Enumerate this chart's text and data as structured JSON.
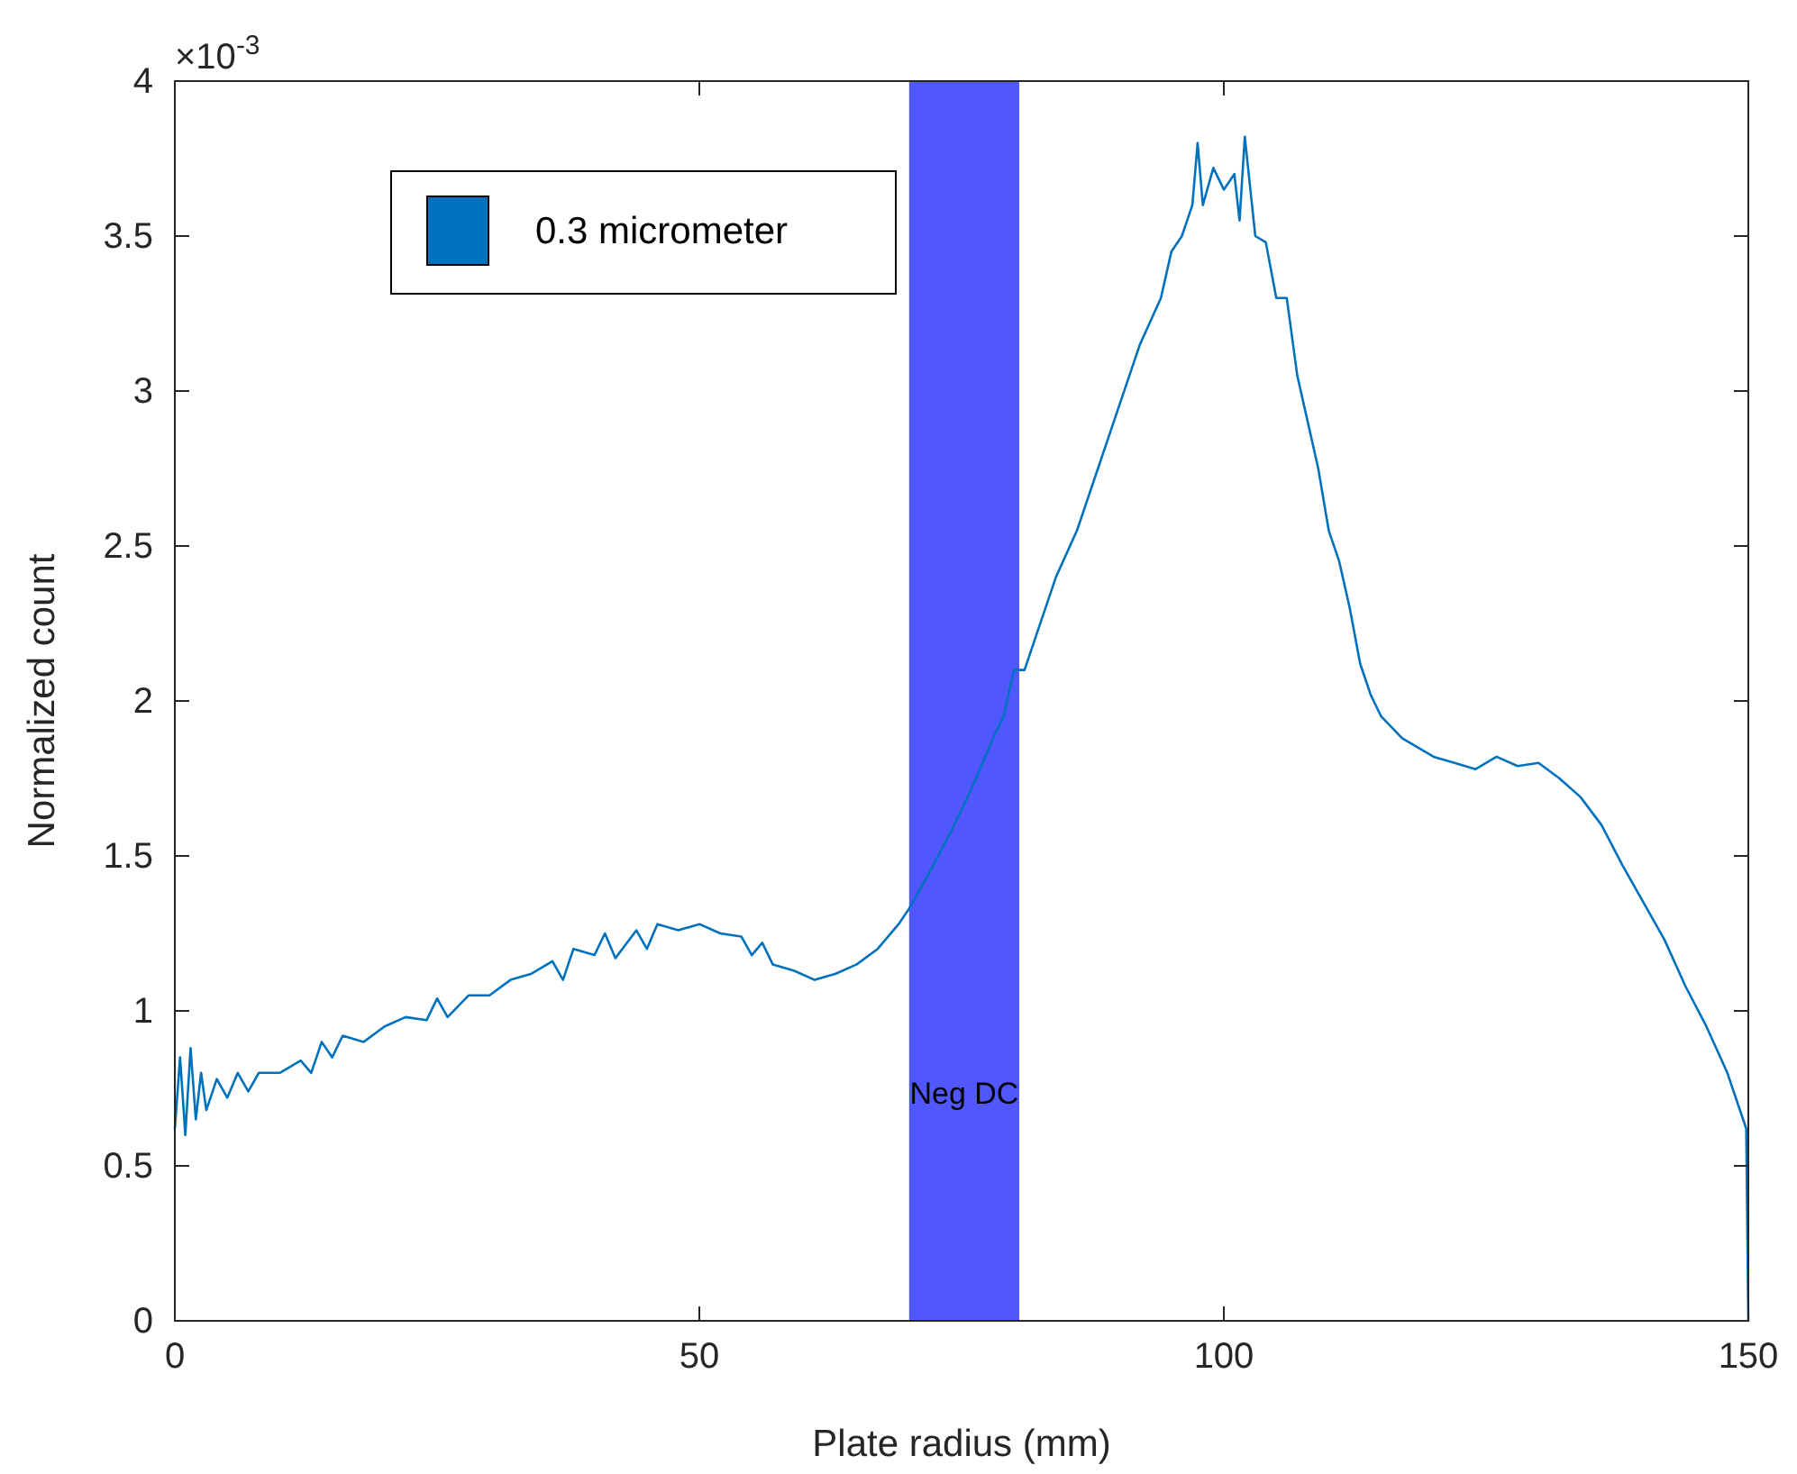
{
  "chart_data": {
    "type": "line",
    "xlabel": "Plate radius (mm)",
    "ylabel": "Normalized count",
    "annotations": [
      "×10$^{-3}$"
    ],
    "xlim": [
      0,
      150
    ],
    "xticks": [
      0,
      50,
      100,
      150
    ],
    "ylim": [
      0,
      4
    ],
    "yticks": [
      0,
      0.5,
      1,
      1.5,
      2,
      2.5,
      3,
      3.5,
      4
    ],
    "legend": "top left",
    "grid": false,
    "bands": [
      {
        "axis": "x",
        "from": 70,
        "to": 80.5,
        "label": "Neg DC",
        "color": "#5057ff"
      }
    ],
    "series": [
      {
        "name": "0.3 micrometer",
        "color": "#0072bd",
        "x": [
          0,
          0.5,
          1,
          1.5,
          2,
          2.5,
          3,
          4,
          5,
          6,
          7,
          8,
          10,
          12,
          13,
          14,
          15,
          16,
          18,
          20,
          22,
          24,
          25,
          26,
          28,
          30,
          32,
          34,
          36,
          37,
          38,
          40,
          41,
          42,
          44,
          45,
          46,
          48,
          50,
          52,
          54,
          55,
          56,
          57,
          59,
          61,
          63,
          65,
          67,
          69,
          70,
          72,
          74,
          76,
          78,
          79,
          80,
          81,
          82,
          84,
          86,
          88,
          90,
          92,
          94,
          95,
          96,
          97,
          97.5,
          98,
          99,
          100,
          101,
          101.5,
          102,
          103,
          104,
          105,
          106,
          107,
          108,
          109,
          110,
          111,
          112,
          113,
          114,
          115,
          117,
          120,
          122,
          124,
          126,
          128,
          130,
          132,
          134,
          136,
          138,
          140,
          142,
          144,
          146,
          148,
          149.8,
          150
        ],
        "values": [
          0.62,
          0.85,
          0.6,
          0.88,
          0.65,
          0.8,
          0.68,
          0.78,
          0.72,
          0.8,
          0.74,
          0.8,
          0.8,
          0.84,
          0.8,
          0.9,
          0.85,
          0.92,
          0.9,
          0.95,
          0.98,
          0.97,
          1.04,
          0.98,
          1.05,
          1.05,
          1.1,
          1.12,
          1.16,
          1.1,
          1.2,
          1.18,
          1.25,
          1.17,
          1.26,
          1.2,
          1.28,
          1.26,
          1.28,
          1.25,
          1.24,
          1.18,
          1.22,
          1.15,
          1.13,
          1.1,
          1.12,
          1.15,
          1.2,
          1.28,
          1.33,
          1.45,
          1.58,
          1.72,
          1.88,
          1.95,
          2.1,
          2.1,
          2.2,
          2.4,
          2.55,
          2.75,
          2.95,
          3.15,
          3.3,
          3.45,
          3.5,
          3.6,
          3.8,
          3.6,
          3.72,
          3.65,
          3.7,
          3.55,
          3.82,
          3.5,
          3.48,
          3.3,
          3.3,
          3.05,
          2.9,
          2.75,
          2.55,
          2.45,
          2.3,
          2.12,
          2.02,
          1.95,
          1.88,
          1.82,
          1.8,
          1.78,
          1.82,
          1.79,
          1.8,
          1.75,
          1.69,
          1.6,
          1.47,
          1.35,
          1.23,
          1.08,
          0.95,
          0.8,
          0.62,
          0
        ]
      }
    ]
  }
}
